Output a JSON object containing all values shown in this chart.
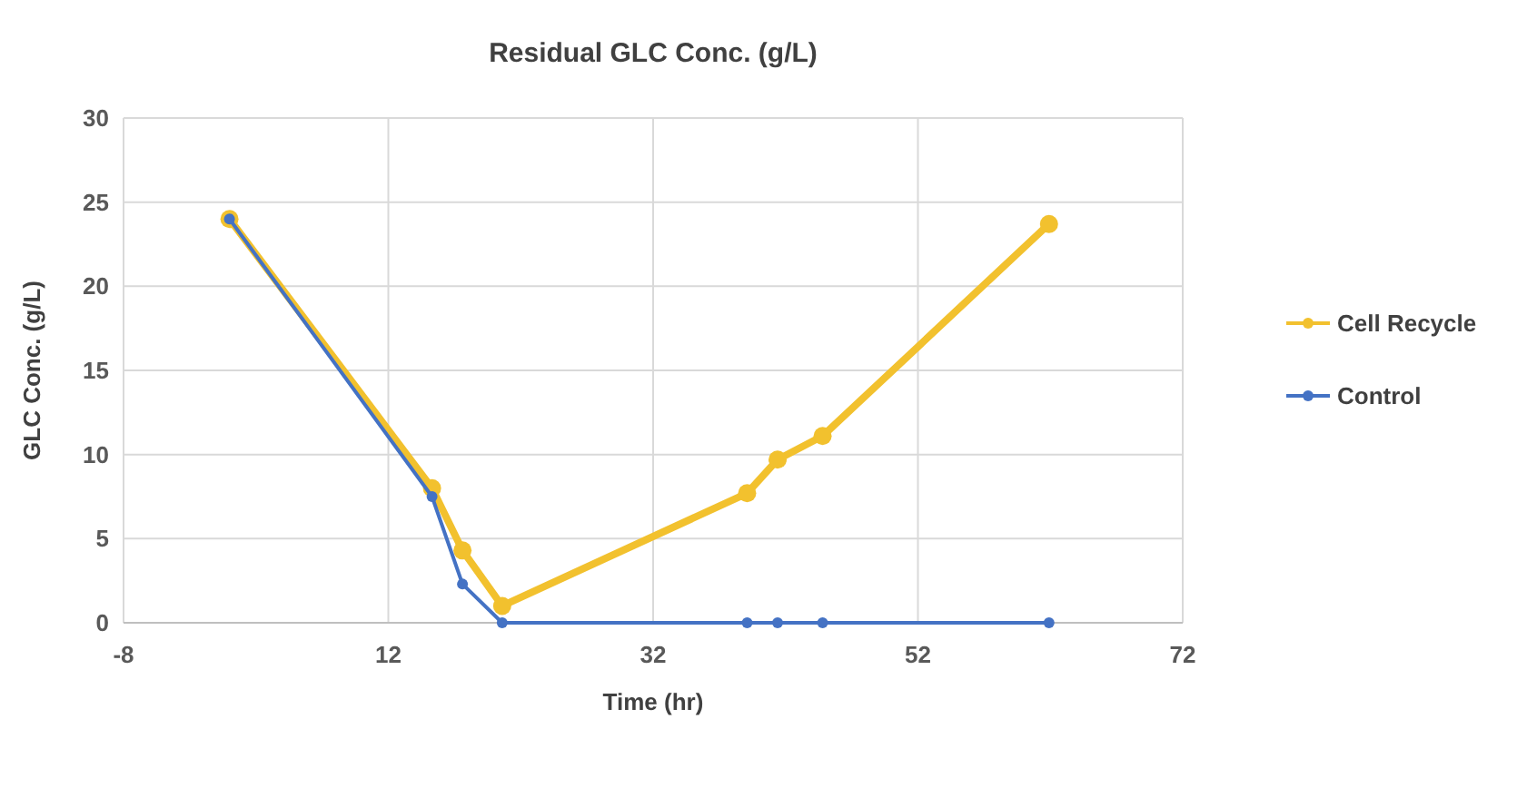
{
  "chart_data": {
    "type": "line",
    "title": "Residual GLC Conc. (g/L)",
    "xlabel": "Time (hr)",
    "ylabel": "GLC Conc. (g/L)",
    "x": [
      0,
      15.3,
      17.6,
      20.6,
      39.1,
      41.4,
      44.8,
      61.9
    ],
    "series": [
      {
        "name": "Cell Recycle",
        "color": "#f2c12e",
        "values": [
          24,
          8,
          4.3,
          1,
          7.7,
          9.7,
          11.1,
          23.7
        ]
      },
      {
        "name": "Control",
        "color": "#4472c4",
        "values": [
          24,
          7.5,
          2.3,
          0,
          0,
          0,
          0,
          0
        ]
      }
    ],
    "xlim": [
      -8,
      72
    ],
    "xticks": [
      -8,
      12,
      32,
      52,
      72
    ],
    "ylim": [
      0,
      30
    ],
    "yticks": [
      0,
      5,
      10,
      15,
      20,
      25,
      30
    ],
    "grid": true,
    "legend": "right",
    "marker": "circle",
    "line_style": "solid"
  }
}
